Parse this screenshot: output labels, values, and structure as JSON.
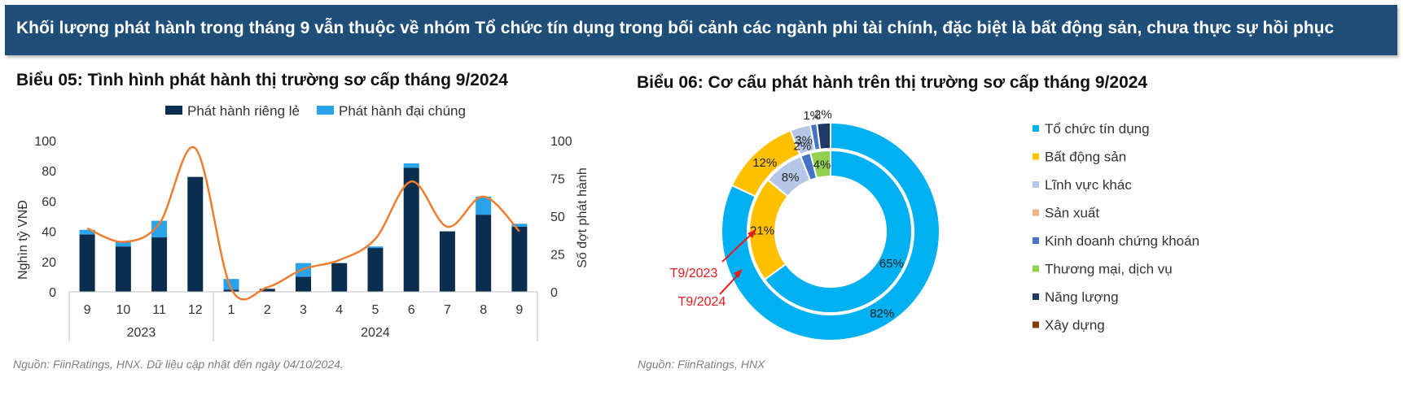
{
  "banner": {
    "text": "Khối lượng phát hành trong tháng 9 vẫn thuộc về nhóm Tổ chức tín dụng trong bối cảnh các ngành phi tài chính, đặc biệt là bất động sản, chưa thực sự hồi phục"
  },
  "chart05_title": "Biểu 05: Tình hình phát hành thị trường sơ cấp tháng 9/2024",
  "chart06_title": "Biểu 06: Cơ cấu phát hành trên thị trường sơ cấp tháng 9/2024",
  "source_left": "Nguồn: FiinRatings, HNX. Dữ liệu cập nhật đến ngày 04/10/2024.",
  "source_right": "Nguồn: FiinRatings, HNX",
  "colors": {
    "navy": "#0b2e4f",
    "light_blue": "#2aa3ea",
    "orange": "#ed7d31",
    "cyan": "#00b0f0",
    "gold": "#ffc000",
    "lavender": "#b4c7e7",
    "peach": "#f4b183",
    "steel": "#4472c4",
    "green": "#92d050",
    "dark_navy": "#1f3864",
    "brown": "#843c0c",
    "arrow_red": "#e31a1c"
  },
  "chart_data": [
    {
      "type": "bar",
      "stacked": true,
      "categories": [
        "9",
        "10",
        "11",
        "12",
        "1",
        "2",
        "3",
        "4",
        "5",
        "6",
        "7",
        "8",
        "9"
      ],
      "year_groups": [
        {
          "label": "2023",
          "span": 4
        },
        {
          "label": "2024",
          "span": 9
        }
      ],
      "series": [
        {
          "name": "Phát hành riêng lẻ",
          "color": "#0b2e4f",
          "values": [
            38,
            30,
            36,
            76,
            1.5,
            2,
            10,
            19,
            29,
            82,
            40,
            51,
            43
          ]
        },
        {
          "name": "Phát hành đại chúng",
          "color": "#2aa3ea",
          "values": [
            3,
            3,
            11,
            0,
            7,
            0,
            9,
            0,
            1,
            3,
            0,
            12,
            2
          ]
        }
      ],
      "line": {
        "name": "Số đợt phát hành",
        "axis": "right",
        "color": "#ed7d31",
        "values": [
          42,
          33,
          45,
          95,
          2,
          3,
          15,
          21,
          35,
          73,
          43,
          63,
          40
        ]
      },
      "ylabel": "Nghìn tỷ VNĐ",
      "ylim": [
        0,
        100
      ],
      "yticks": [
        "0",
        "20",
        "40",
        "60",
        "80",
        "100"
      ],
      "y2label": "Số đợt phát hành",
      "y2lim": [
        0,
        100
      ],
      "y2ticks": [
        "0",
        "25",
        "50",
        "75",
        "100"
      ],
      "legend": "top"
    },
    {
      "type": "donut",
      "categories": [
        "Tổ chức tín dụng",
        "Bất động sản",
        "Lĩnh vực khác",
        "Sản xuất",
        "Kinh doanh chứng khoán",
        "Thương mại, dịch vụ",
        "Năng lượng",
        "Xây dựng"
      ],
      "colors": [
        "#00b0f0",
        "#ffc000",
        "#b4c7e7",
        "#f4b183",
        "#4472c4",
        "#92d050",
        "#1f3864",
        "#843c0c"
      ],
      "outer": {
        "name": "T9/2024",
        "values": [
          82,
          12,
          3,
          0,
          1,
          0,
          2,
          0
        ],
        "labels": [
          "82%",
          "12%",
          "3%",
          "",
          "1%",
          "",
          "2%",
          ""
        ]
      },
      "inner": {
        "name": "T9/2023",
        "values": [
          65,
          21,
          8,
          0,
          2,
          4,
          0,
          0
        ],
        "labels": [
          "65%",
          "21%",
          "8%",
          "",
          "2%",
          "4%",
          "",
          ""
        ]
      },
      "legend": "right"
    }
  ]
}
